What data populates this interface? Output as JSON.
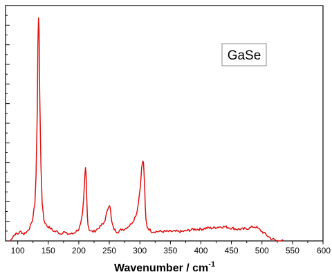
{
  "chart_data": {
    "type": "line",
    "title": "",
    "xlabel_main": "Wavenumber / cm",
    "xlabel_sup": "-1",
    "ylabel": "",
    "xlim": [
      80,
      600
    ],
    "ylim": [
      0,
      1.0
    ],
    "x_ticks": [
      100,
      150,
      200,
      250,
      300,
      350,
      400,
      450,
      500,
      550,
      600
    ],
    "x_tick_labels": [
      "100",
      "150",
      "200",
      "250",
      "300",
      "350",
      "400",
      "450",
      "500",
      "550",
      "600"
    ],
    "y_tick_labels_shown": false,
    "grid": false,
    "series": [
      {
        "name": "GaSe",
        "color": "#e01010",
        "x": [
          88,
          92,
          96,
          100,
          105,
          110,
          115,
          118,
          122,
          125,
          128,
          130,
          132,
          133,
          134,
          135,
          136,
          138,
          140,
          143,
          146,
          150,
          155,
          160,
          165,
          170,
          175,
          180,
          185,
          190,
          195,
          200,
          203,
          206,
          208,
          210,
          211,
          212,
          213,
          214,
          215,
          217,
          220,
          225,
          230,
          235,
          238,
          240,
          243,
          246,
          248,
          250,
          251,
          252,
          253,
          254,
          256,
          258,
          262,
          266,
          270,
          275,
          280,
          285,
          290,
          295,
          298,
          301,
          303,
          305,
          306,
          307,
          308,
          309,
          310,
          312,
          315,
          320,
          325,
          330,
          335,
          340,
          350,
          360,
          370,
          380,
          390,
          400,
          410,
          420,
          430,
          440,
          450,
          460,
          470,
          480,
          485,
          490,
          495,
          500,
          505,
          510,
          515,
          520,
          525,
          530,
          535
        ],
        "y": [
          0.0,
          0.02,
          0.03,
          0.03,
          0.04,
          0.03,
          0.04,
          0.05,
          0.07,
          0.1,
          0.16,
          0.28,
          0.55,
          0.84,
          0.95,
          0.9,
          0.62,
          0.32,
          0.16,
          0.09,
          0.07,
          0.06,
          0.05,
          0.04,
          0.04,
          0.03,
          0.04,
          0.03,
          0.03,
          0.03,
          0.04,
          0.05,
          0.07,
          0.11,
          0.18,
          0.28,
          0.31,
          0.28,
          0.19,
          0.11,
          0.07,
          0.05,
          0.04,
          0.04,
          0.05,
          0.06,
          0.07,
          0.07,
          0.09,
          0.12,
          0.14,
          0.155,
          0.15,
          0.13,
          0.1,
          0.08,
          0.06,
          0.05,
          0.04,
          0.04,
          0.05,
          0.05,
          0.06,
          0.07,
          0.09,
          0.12,
          0.17,
          0.24,
          0.31,
          0.34,
          0.33,
          0.28,
          0.21,
          0.14,
          0.09,
          0.06,
          0.05,
          0.04,
          0.04,
          0.04,
          0.04,
          0.04,
          0.04,
          0.04,
          0.04,
          0.045,
          0.05,
          0.05,
          0.055,
          0.055,
          0.06,
          0.06,
          0.055,
          0.05,
          0.05,
          0.055,
          0.06,
          0.06,
          0.05,
          0.04,
          0.03,
          0.02,
          0.01,
          0.005,
          0.0,
          0.0,
          0.0
        ]
      }
    ],
    "legend": {
      "text": "GaSe",
      "placement": "top-right"
    }
  }
}
